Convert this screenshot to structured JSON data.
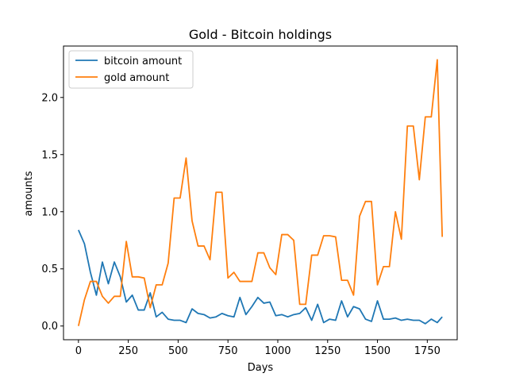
{
  "chart_data": {
    "type": "line",
    "title": "Gold - Bitcoin holdings",
    "xlabel": "Days",
    "ylabel": "amounts",
    "xlim": [
      -75,
      1900
    ],
    "ylim": [
      -0.12,
      2.45
    ],
    "xticks": [
      0,
      250,
      500,
      750,
      1000,
      1250,
      1500,
      1750
    ],
    "yticks": [
      0.0,
      0.5,
      1.0,
      1.5,
      2.0
    ],
    "xtick_labels": [
      "0",
      "250",
      "500",
      "750",
      "1000",
      "1250",
      "1500",
      "1750"
    ],
    "ytick_labels": [
      "0.0",
      "0.5",
      "1.0",
      "1.5",
      "2.0"
    ],
    "grid": false,
    "legend_position": "upper-left",
    "series": [
      {
        "name": "bitcoin amount",
        "color": "#1f77b4",
        "x": [
          0,
          30,
          60,
          90,
          120,
          150,
          180,
          210,
          240,
          270,
          300,
          330,
          360,
          390,
          420,
          450,
          480,
          510,
          540,
          570,
          600,
          630,
          660,
          690,
          720,
          750,
          780,
          810,
          840,
          870,
          900,
          930,
          960,
          990,
          1020,
          1050,
          1080,
          1110,
          1140,
          1170,
          1200,
          1230,
          1260,
          1290,
          1320,
          1350,
          1380,
          1410,
          1440,
          1470,
          1500,
          1530,
          1560,
          1590,
          1620,
          1650,
          1680,
          1710,
          1740,
          1770,
          1800,
          1825
        ],
        "y": [
          0.84,
          0.72,
          0.47,
          0.27,
          0.56,
          0.37,
          0.56,
          0.43,
          0.21,
          0.27,
          0.14,
          0.14,
          0.29,
          0.08,
          0.12,
          0.06,
          0.05,
          0.05,
          0.03,
          0.15,
          0.11,
          0.1,
          0.07,
          0.08,
          0.11,
          0.09,
          0.08,
          0.25,
          0.1,
          0.17,
          0.25,
          0.2,
          0.21,
          0.09,
          0.1,
          0.08,
          0.1,
          0.11,
          0.16,
          0.05,
          0.19,
          0.03,
          0.06,
          0.05,
          0.22,
          0.08,
          0.17,
          0.15,
          0.06,
          0.04,
          0.22,
          0.06,
          0.06,
          0.07,
          0.05,
          0.06,
          0.05,
          0.05,
          0.02,
          0.06,
          0.03,
          0.08
        ]
      },
      {
        "name": "gold amount",
        "color": "#ff7f0e",
        "x": [
          0,
          30,
          60,
          90,
          120,
          150,
          180,
          210,
          240,
          270,
          300,
          330,
          360,
          390,
          420,
          450,
          480,
          510,
          540,
          570,
          600,
          630,
          660,
          690,
          720,
          750,
          780,
          810,
          840,
          870,
          900,
          930,
          960,
          990,
          1020,
          1050,
          1080,
          1110,
          1140,
          1170,
          1200,
          1230,
          1260,
          1290,
          1320,
          1350,
          1380,
          1410,
          1440,
          1470,
          1500,
          1530,
          1560,
          1590,
          1620,
          1650,
          1680,
          1710,
          1740,
          1770,
          1800,
          1825
        ],
        "y": [
          0.0,
          0.23,
          0.39,
          0.39,
          0.26,
          0.2,
          0.26,
          0.26,
          0.74,
          0.43,
          0.43,
          0.42,
          0.16,
          0.36,
          0.36,
          0.55,
          1.12,
          1.12,
          1.47,
          0.92,
          0.7,
          0.7,
          0.58,
          1.17,
          1.17,
          0.42,
          0.47,
          0.39,
          0.39,
          0.39,
          0.64,
          0.64,
          0.51,
          0.45,
          0.8,
          0.8,
          0.75,
          0.19,
          0.19,
          0.62,
          0.62,
          0.79,
          0.79,
          0.78,
          0.4,
          0.4,
          0.27,
          0.96,
          1.09,
          1.09,
          0.36,
          0.52,
          0.52,
          1.0,
          0.76,
          1.75,
          1.75,
          1.28,
          1.83,
          1.83,
          2.33,
          0.78
        ]
      }
    ]
  }
}
